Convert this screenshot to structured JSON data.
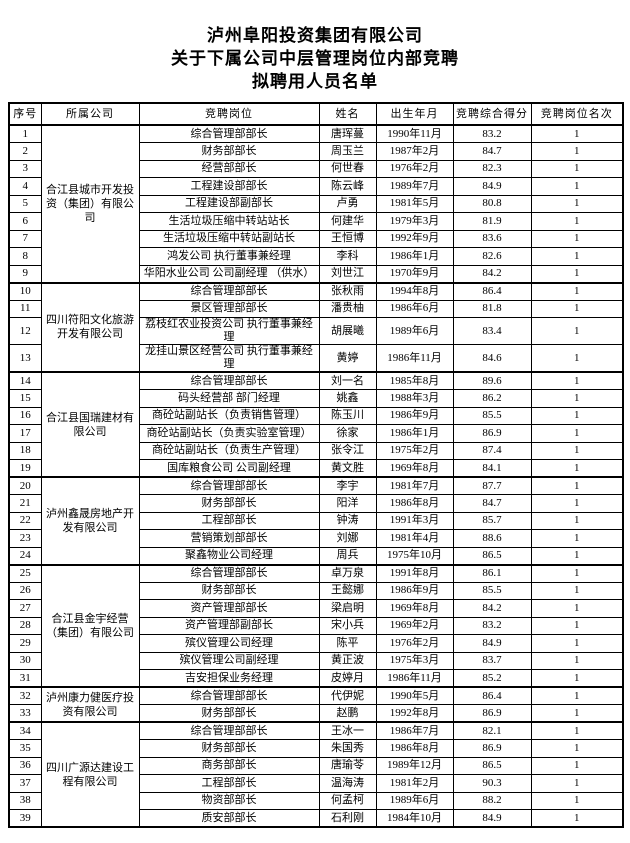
{
  "title": {
    "line1": "泸州阜阳投资集团有限公司",
    "line2": "关于下属公司中层管理岗位内部竞聘",
    "line3": "拟聘用人员名单"
  },
  "table": {
    "headers": [
      "序号",
      "所属公司",
      "竞聘岗位",
      "姓名",
      "出生年月",
      "竞聘综合得分",
      "竞聘岗位名次"
    ],
    "groups": [
      {
        "company": "合江县城市开发投资（集团）有限公司",
        "rows": [
          {
            "seq": "1",
            "position": "综合管理部部长",
            "name": "唐珲蔓",
            "birth": "1990年11月",
            "score": "83.2",
            "rank": "1"
          },
          {
            "seq": "2",
            "position": "财务部部长",
            "name": "周玉兰",
            "birth": "1987年2月",
            "score": "84.7",
            "rank": "1"
          },
          {
            "seq": "3",
            "position": "经营部部长",
            "name": "何世春",
            "birth": "1976年2月",
            "score": "82.3",
            "rank": "1"
          },
          {
            "seq": "4",
            "position": "工程建设部部长",
            "name": "陈云峰",
            "birth": "1989年7月",
            "score": "84.9",
            "rank": "1"
          },
          {
            "seq": "5",
            "position": "工程建设部副部长",
            "name": "卢勇",
            "birth": "1981年5月",
            "score": "80.8",
            "rank": "1"
          },
          {
            "seq": "6",
            "position": "生活垃圾压缩中转站站长",
            "name": "何建华",
            "birth": "1979年3月",
            "score": "81.9",
            "rank": "1"
          },
          {
            "seq": "7",
            "position": "生活垃圾压缩中转站副站长",
            "name": "王恒博",
            "birth": "1992年9月",
            "score": "83.6",
            "rank": "1"
          },
          {
            "seq": "8",
            "position": "鸿发公司 执行董事兼经理",
            "name": "李科",
            "birth": "1986年1月",
            "score": "82.6",
            "rank": "1"
          },
          {
            "seq": "9",
            "position": "华阳水业公司 公司副经理 （供水）",
            "name": "刘世江",
            "birth": "1970年9月",
            "score": "84.2",
            "rank": "1"
          }
        ]
      },
      {
        "company": "四川符阳文化旅游开发有限公司",
        "rows": [
          {
            "seq": "10",
            "position": "综合管理部部长",
            "name": "张秋雨",
            "birth": "1994年8月",
            "score": "86.4",
            "rank": "1"
          },
          {
            "seq": "11",
            "position": "景区管理部部长",
            "name": "潘贵柚",
            "birth": "1986年6月",
            "score": "81.8",
            "rank": "1"
          },
          {
            "seq": "12",
            "position": "荔枝红农业投资公司 执行董事兼经理",
            "name": "胡展曦",
            "birth": "1989年6月",
            "score": "83.4",
            "rank": "1"
          },
          {
            "seq": "13",
            "position": "龙挂山景区经营公司 执行董事兼经理",
            "name": "黄婷",
            "birth": "1986年11月",
            "score": "84.6",
            "rank": "1"
          }
        ]
      },
      {
        "company": "合江县国瑞建材有限公司",
        "rows": [
          {
            "seq": "14",
            "position": "综合管理部部长",
            "name": "刘一名",
            "birth": "1985年8月",
            "score": "89.6",
            "rank": "1"
          },
          {
            "seq": "15",
            "position": "码头经营部 部门经理",
            "name": "姚鑫",
            "birth": "1988年3月",
            "score": "86.2",
            "rank": "1"
          },
          {
            "seq": "16",
            "position": "商砼站副站长（负责销售管理）",
            "name": "陈玉川",
            "birth": "1986年9月",
            "score": "85.5",
            "rank": "1"
          },
          {
            "seq": "17",
            "position": "商砼站副站长（负责实验室管理）",
            "name": "徐家",
            "birth": "1986年1月",
            "score": "86.9",
            "rank": "1"
          },
          {
            "seq": "18",
            "position": "商砼站副站长（负责生产管理）",
            "name": "张令江",
            "birth": "1975年2月",
            "score": "87.4",
            "rank": "1"
          },
          {
            "seq": "19",
            "position": "国库粮食公司 公司副经理",
            "name": "黄文胜",
            "birth": "1969年8月",
            "score": "84.1",
            "rank": "1"
          }
        ]
      },
      {
        "company": "泸州鑫晟房地产开发有限公司",
        "rows": [
          {
            "seq": "20",
            "position": "综合管理部部长",
            "name": "李宇",
            "birth": "1981年7月",
            "score": "87.7",
            "rank": "1"
          },
          {
            "seq": "21",
            "position": "财务部部长",
            "name": "阳洋",
            "birth": "1986年8月",
            "score": "84.7",
            "rank": "1"
          },
          {
            "seq": "22",
            "position": "工程部部长",
            "name": "钟涛",
            "birth": "1991年3月",
            "score": "85.7",
            "rank": "1"
          },
          {
            "seq": "23",
            "position": "营销策划部部长",
            "name": "刘娜",
            "birth": "1981年4月",
            "score": "88.6",
            "rank": "1"
          },
          {
            "seq": "24",
            "position": "聚鑫物业公司经理",
            "name": "周兵",
            "birth": "1975年10月",
            "score": "86.5",
            "rank": "1"
          }
        ]
      },
      {
        "company": "合江县金宇经营（集团）有限公司",
        "rows": [
          {
            "seq": "25",
            "position": "综合管理部部长",
            "name": "卓万泉",
            "birth": "1991年8月",
            "score": "86.1",
            "rank": "1"
          },
          {
            "seq": "26",
            "position": "财务部部长",
            "name": "王懿娜",
            "birth": "1986年9月",
            "score": "85.5",
            "rank": "1"
          },
          {
            "seq": "27",
            "position": "资产管理部部长",
            "name": "梁启明",
            "birth": "1969年8月",
            "score": "84.2",
            "rank": "1"
          },
          {
            "seq": "28",
            "position": "资产管理部副部长",
            "name": "宋小兵",
            "birth": "1969年2月",
            "score": "83.2",
            "rank": "1"
          },
          {
            "seq": "29",
            "position": "殡仪管理公司经理",
            "name": "陈平",
            "birth": "1976年2月",
            "score": "84.9",
            "rank": "1"
          },
          {
            "seq": "30",
            "position": "殡仪管理公司副经理",
            "name": "黄正波",
            "birth": "1975年3月",
            "score": "83.7",
            "rank": "1"
          },
          {
            "seq": "31",
            "position": "吉安担保业务经理",
            "name": "皮婷月",
            "birth": "1986年11月",
            "score": "85.2",
            "rank": "1"
          }
        ]
      },
      {
        "company": "泸州康力健医疗投资有限公司",
        "rows": [
          {
            "seq": "32",
            "position": "综合管理部部长",
            "name": "代伊妮",
            "birth": "1990年5月",
            "score": "86.4",
            "rank": "1"
          },
          {
            "seq": "33",
            "position": "财务部部长",
            "name": "赵鹏",
            "birth": "1992年8月",
            "score": "86.9",
            "rank": "1"
          }
        ]
      },
      {
        "company": "四川广源达建设工程有限公司",
        "rows": [
          {
            "seq": "34",
            "position": "综合管理部部长",
            "name": "王冰一",
            "birth": "1986年7月",
            "score": "82.1",
            "rank": "1"
          },
          {
            "seq": "35",
            "position": "财务部部长",
            "name": "朱国秀",
            "birth": "1986年8月",
            "score": "86.9",
            "rank": "1"
          },
          {
            "seq": "36",
            "position": "商务部部长",
            "name": "唐瑜苓",
            "birth": "1989年12月",
            "score": "86.5",
            "rank": "1"
          },
          {
            "seq": "37",
            "position": "工程部部长",
            "name": "温海涛",
            "birth": "1981年2月",
            "score": "90.3",
            "rank": "1"
          },
          {
            "seq": "38",
            "position": "物资部部长",
            "name": "何孟柯",
            "birth": "1989年6月",
            "score": "88.2",
            "rank": "1"
          },
          {
            "seq": "39",
            "position": "质安部部长",
            "name": "石利刚",
            "birth": "1984年10月",
            "score": "84.9",
            "rank": "1"
          }
        ]
      }
    ]
  },
  "colors": {
    "ink": "#000000",
    "paper": "#ffffff"
  }
}
